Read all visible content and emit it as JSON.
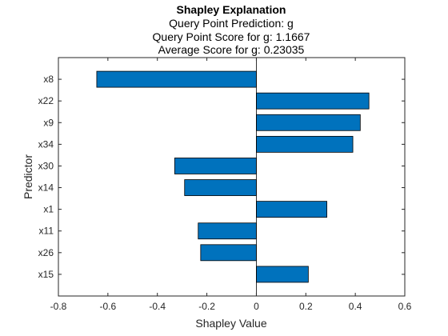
{
  "chart_data": {
    "type": "bar",
    "orientation": "horizontal",
    "title": "Shapley Explanation",
    "subtitles": [
      "Query Point Prediction: g",
      "Query Point Score for g: 1.1667",
      "Average Score for g: 0.23035"
    ],
    "xlabel": "Shapley Value",
    "ylabel": "Predictor",
    "xlim": [
      -0.8,
      0.6
    ],
    "xticks": [
      -0.8,
      -0.6,
      -0.4,
      -0.2,
      0,
      0.2,
      0.4,
      0.6
    ],
    "xtick_labels": [
      "-0.8",
      "-0.6",
      "-0.4",
      "-0.2",
      "0",
      "0.2",
      "0.4",
      "0.6"
    ],
    "categories": [
      "x8",
      "x22",
      "x9",
      "x34",
      "x30",
      "x14",
      "x1",
      "x11",
      "x26",
      "x15"
    ],
    "values": [
      -0.645,
      0.455,
      0.42,
      0.39,
      -0.33,
      -0.29,
      0.285,
      -0.235,
      -0.225,
      0.21
    ],
    "bar_color": "#0072BD",
    "grid": false,
    "legend": "none"
  }
}
